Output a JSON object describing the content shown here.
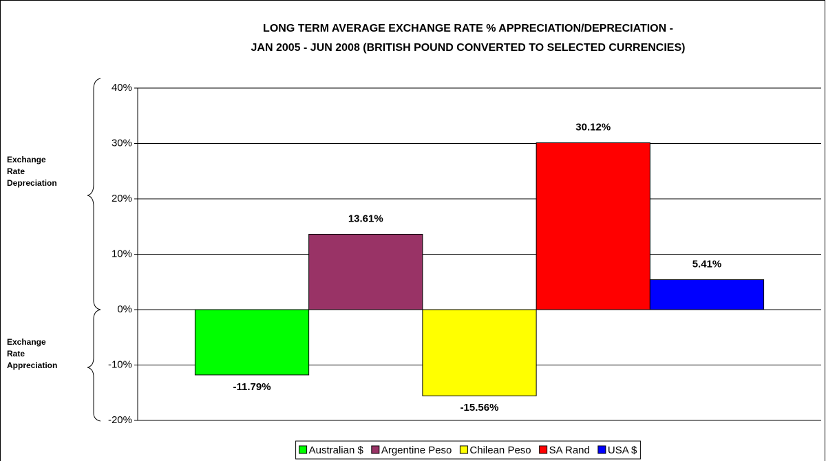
{
  "chart_data": {
    "type": "bar",
    "title": [
      "LONG TERM AVERAGE EXCHANGE RATE % APPRECIATION/DEPRECIATION -",
      "JAN 2005 - JUN 2008 (BRITISH POUND CONVERTED TO SELECTED CURRENCIES)"
    ],
    "categories": [
      null
    ],
    "series": [
      {
        "name": "Australian $",
        "color": "#00ff00",
        "values": [
          -11.79
        ],
        "value_labels": [
          "-11.79%"
        ]
      },
      {
        "name": "Argentine Peso",
        "color": "#993366",
        "values": [
          13.61
        ],
        "value_labels": [
          "13.61%"
        ]
      },
      {
        "name": "Chilean Peso",
        "color": "#ffff00",
        "values": [
          -15.56
        ],
        "value_labels": [
          "-15.56%"
        ]
      },
      {
        "name": "SA Rand",
        "color": "#ff0000",
        "values": [
          30.12
        ],
        "value_labels": [
          "30.12%"
        ]
      },
      {
        "name": "USA $",
        "color": "#0000ff",
        "values": [
          5.41
        ],
        "value_labels": [
          "5.41%"
        ]
      }
    ],
    "ylim": [
      -20,
      40
    ],
    "yticks": [
      {
        "value": -20,
        "label": "-20%"
      },
      {
        "value": -10,
        "label": "-10%"
      },
      {
        "value": 0,
        "label": "0%"
      },
      {
        "value": 10,
        "label": "10%"
      },
      {
        "value": 20,
        "label": "20%"
      },
      {
        "value": 30,
        "label": "30%"
      },
      {
        "value": 40,
        "label": "40%"
      }
    ],
    "grid": true,
    "legend": "bottom",
    "annotations": [
      [
        "Exchange",
        "Rate",
        "Depreciation"
      ],
      [
        "Exchange",
        "Rate",
        "Appreciation"
      ]
    ]
  }
}
